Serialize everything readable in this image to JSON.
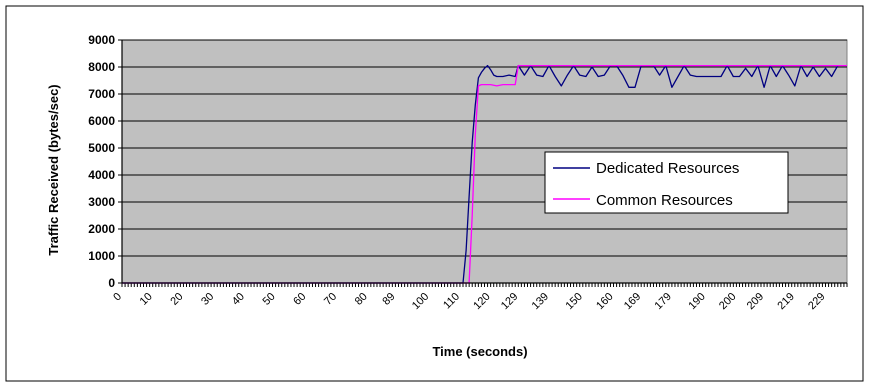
{
  "chart_data": {
    "type": "line",
    "xlabel": "Time (seconds)",
    "ylabel": "Traffic Received (bytes/sec)",
    "ylim": [
      0,
      9000
    ],
    "xlim": [
      0,
      236
    ],
    "y_ticks": [
      0,
      1000,
      2000,
      3000,
      4000,
      5000,
      6000,
      7000,
      8000,
      9000
    ],
    "x_tick_labels": [
      "0",
      "10",
      "20",
      "30",
      "40",
      "50",
      "60",
      "70",
      "80",
      "89",
      "100",
      "110",
      "120",
      "129",
      "139",
      "150",
      "160",
      "169",
      "179",
      "190",
      "200",
      "209",
      "219",
      "229"
    ],
    "x_tick_values": [
      0,
      10,
      20,
      30,
      40,
      50,
      60,
      70,
      80,
      89,
      100,
      110,
      120,
      129,
      139,
      150,
      160,
      169,
      179,
      190,
      200,
      209,
      219,
      229
    ],
    "grid": true,
    "legend": "center-right",
    "plot_background": "#c0c0c0",
    "series": [
      {
        "name": "Dedicated Resources",
        "color": "#000080",
        "x": [
          0,
          111,
          112,
          113,
          114,
          115,
          116,
          117,
          118,
          119,
          120,
          121,
          122,
          124,
          126,
          128,
          129,
          131,
          133,
          135,
          137,
          139,
          141,
          143,
          145,
          147,
          149,
          151,
          153,
          155,
          157,
          159,
          161,
          163,
          165,
          167,
          169,
          171,
          173,
          175,
          177,
          179,
          181,
          183,
          185,
          187,
          189,
          191,
          193,
          195,
          197,
          199,
          201,
          203,
          205,
          207,
          209,
          211,
          213,
          215,
          217,
          219,
          221,
          223,
          225,
          227,
          229,
          231,
          233
        ],
        "y": [
          0,
          0,
          1200,
          3200,
          5200,
          6600,
          7600,
          7800,
          7950,
          8050,
          7900,
          7700,
          7650,
          7650,
          7700,
          7650,
          8050,
          7700,
          8050,
          7700,
          7650,
          8050,
          7650,
          7300,
          7700,
          8050,
          7700,
          7650,
          8000,
          7650,
          7700,
          8050,
          8050,
          7700,
          7250,
          7250,
          8050,
          8050,
          8050,
          7700,
          8050,
          7250,
          7650,
          8050,
          7700,
          7650,
          7650,
          7650,
          7650,
          7650,
          8050,
          7650,
          7650,
          7950,
          7650,
          8050,
          7250,
          8050,
          7650,
          8050,
          7700,
          7300,
          8050,
          7650,
          8000,
          7650,
          7950,
          7650,
          8050
        ]
      },
      {
        "name": "Common Resources",
        "color": "#ff00ff",
        "x": [
          0,
          113,
          114,
          115,
          116,
          117,
          118,
          120,
          122,
          124,
          126,
          128,
          129,
          131,
          236
        ],
        "y": [
          0,
          0,
          2500,
          5500,
          7300,
          7350,
          7350,
          7350,
          7300,
          7350,
          7350,
          7350,
          8050,
          8050,
          8050
        ]
      }
    ]
  }
}
